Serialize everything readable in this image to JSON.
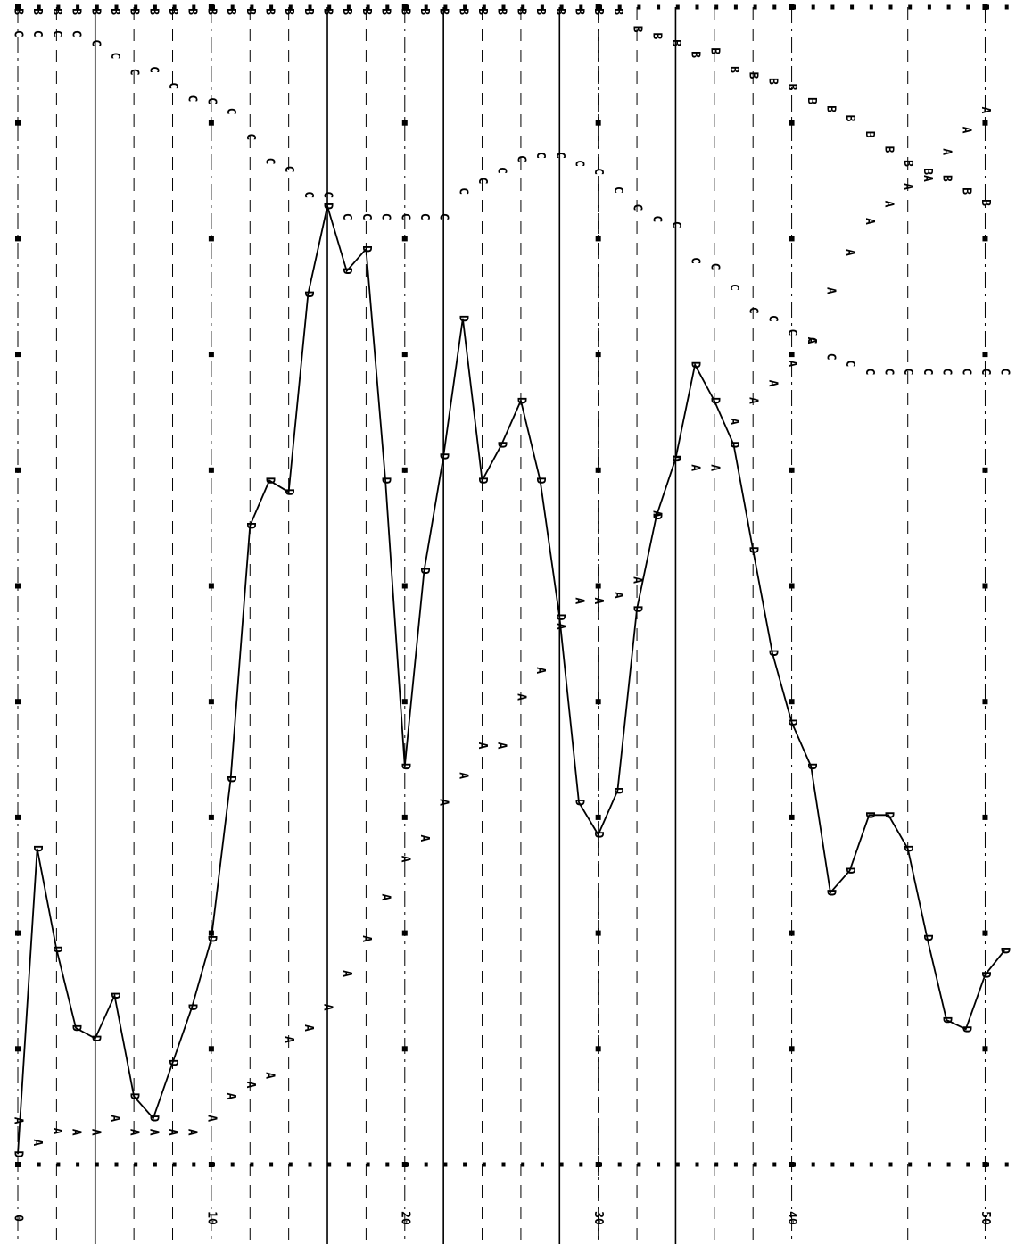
{
  "chart_data": {
    "type": "line",
    "x": [
      0,
      1,
      2,
      3,
      4,
      5,
      6,
      7,
      8,
      9,
      10,
      11,
      12,
      13,
      14,
      15,
      16,
      17,
      18,
      19,
      20,
      21,
      22,
      23,
      24,
      25,
      26,
      27,
      28,
      29,
      30,
      31,
      32,
      33,
      34,
      35,
      36,
      37,
      38,
      39,
      40,
      41,
      42,
      43,
      44,
      45,
      46,
      47,
      48,
      49,
      50,
      51
    ],
    "xlim": [
      0,
      51.5
    ],
    "xticks": [
      0,
      10,
      20,
      30,
      40,
      50
    ],
    "ylim": [
      0,
      100
    ],
    "yticks": [
      0,
      10,
      20,
      30,
      40,
      50,
      60,
      70,
      80,
      90,
      100
    ],
    "solid_lines": [
      4,
      16,
      22,
      28,
      34
    ],
    "dashed_lines": [
      2,
      6,
      8,
      12,
      14,
      18,
      24,
      26,
      30,
      32,
      36,
      38,
      46
    ],
    "series": [
      {
        "name": "D",
        "color": "#000000",
        "connected": true,
        "values": [
          0.9,
          27.3,
          18.6,
          11.8,
          10.9,
          14.6,
          5.9,
          4.0,
          8.8,
          13.6,
          19.5,
          33.3,
          55.2,
          59.1,
          58.1,
          75.2,
          82.8,
          77.2,
          79.1,
          59.1,
          34.4,
          51.3,
          61.2,
          73.1,
          59.1,
          62.2,
          66.0,
          59.1,
          47.3,
          31.3,
          28.5,
          32.3,
          48,
          56,
          61,
          69.1,
          66.0,
          62.2,
          53.1,
          44.2,
          38.2,
          34.4,
          23.5,
          25.4,
          30.2,
          30.2,
          27.3,
          19.6,
          12.5,
          11.7,
          16.4,
          18.5
        ]
      },
      {
        "name": "A",
        "color": "#000000",
        "connected": false,
        "values": [
          3.8,
          1.9,
          2.9,
          2.8,
          2.8,
          4.0,
          2.8,
          2.8,
          2.8,
          2.8,
          4.0,
          5.9,
          6.9,
          7.7,
          10.8,
          11.8,
          13.6,
          16.5,
          19.5,
          23.1,
          26.4,
          28.2,
          31.3,
          33.6,
          36.2,
          36.2,
          40.4,
          42.7,
          46.5,
          48.7,
          48.7,
          49.2,
          50.5,
          56.2,
          61.0,
          60.2,
          60.2,
          64.2,
          66,
          67.5,
          69.2,
          71.2,
          75.5,
          78.8,
          81.5,
          83,
          84.5,
          85.2,
          87.5,
          89.4,
          91.1,
          null
        ]
      },
      {
        "name": "B",
        "color": "#000000",
        "connected": false,
        "values": [
          99.6,
          99.6,
          99.6,
          99.6,
          99.6,
          99.6,
          99.6,
          99.6,
          99.6,
          99.6,
          99.6,
          99.6,
          99.6,
          99.6,
          99.6,
          99.6,
          99.6,
          99.6,
          99.6,
          99.6,
          99.6,
          99.6,
          99.6,
          99.6,
          99.6,
          99.6,
          99.6,
          99.6,
          99.6,
          99.6,
          99.6,
          99.6,
          98.1,
          97.5,
          96.9,
          95.9,
          96.2,
          94.6,
          94.1,
          93.6,
          93.1,
          91.9,
          91.2,
          90.4,
          89.0,
          87.7,
          86.5,
          85.8,
          85.2,
          84.1,
          83.1,
          null
        ]
      },
      {
        "name": "C",
        "color": "#000000",
        "connected": false,
        "values": [
          97.7,
          97.7,
          97.7,
          97.7,
          96.9,
          95.8,
          94.4,
          94.6,
          93.2,
          92.1,
          91.9,
          91.0,
          88.8,
          86.7,
          86.0,
          83.8,
          83.8,
          81.9,
          81.9,
          81.9,
          81.9,
          81.9,
          81.9,
          84.1,
          85.0,
          85.9,
          86.9,
          87.2,
          87.2,
          86.5,
          85.8,
          84.2,
          82.7,
          81.7,
          81.2,
          78.1,
          77.6,
          75.8,
          73.8,
          73.1,
          71.9,
          71.2,
          69.8,
          69.2,
          68.5,
          68.5,
          68.5,
          68.5,
          68.5,
          68.5,
          68.5,
          68.5
        ]
      }
    ]
  }
}
